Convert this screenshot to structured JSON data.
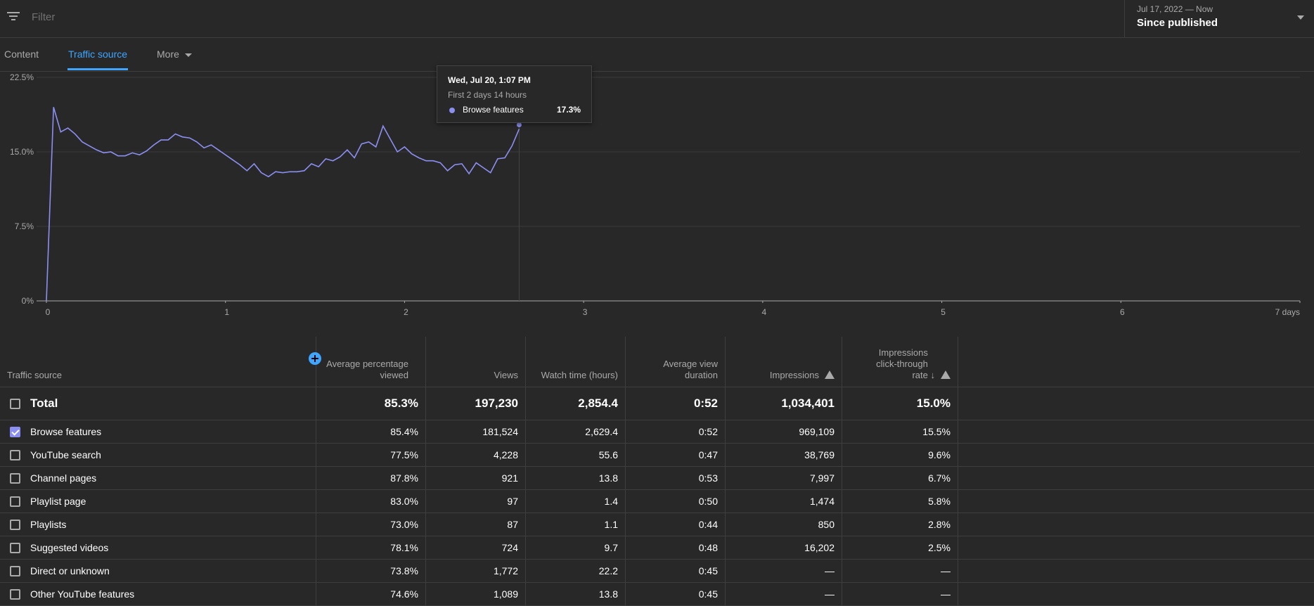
{
  "filter": {
    "placeholder": "Filter"
  },
  "date_range": {
    "range": "Jul 17, 2022 — Now",
    "label": "Since published"
  },
  "tabs": [
    {
      "label": "Content",
      "active": false
    },
    {
      "label": "Traffic source",
      "active": true
    },
    {
      "label": "More",
      "active": false
    }
  ],
  "chart_data": {
    "type": "line",
    "x": [
      0,
      0.04,
      0.08,
      0.12,
      0.16,
      0.2,
      0.24,
      0.28,
      0.32,
      0.36,
      0.4,
      0.44,
      0.48,
      0.52,
      0.56,
      0.6,
      0.64,
      0.68,
      0.72,
      0.76,
      0.8,
      0.84,
      0.88,
      0.92,
      0.96,
      1,
      1.04,
      1.08,
      1.12,
      1.16,
      1.2,
      1.24,
      1.28,
      1.32,
      1.36,
      1.4,
      1.44,
      1.48,
      1.52,
      1.56,
      1.6,
      1.64,
      1.68,
      1.72,
      1.76,
      1.8,
      1.84,
      1.88,
      1.92,
      1.96,
      2,
      2.04,
      2.08,
      2.12,
      2.16,
      2.2,
      2.24,
      2.28,
      2.32,
      2.36,
      2.4,
      2.44,
      2.48,
      2.52,
      2.56,
      2.6,
      2.64
    ],
    "series": [
      {
        "name": "Browse features",
        "color": "#8c8ff2",
        "values": [
          0,
          19.5,
          17.0,
          17.4,
          16.8,
          16.0,
          15.6,
          15.2,
          14.9,
          15.0,
          14.6,
          14.6,
          14.9,
          14.7,
          15.1,
          15.7,
          16.2,
          16.2,
          16.8,
          16.5,
          16.4,
          16.0,
          15.4,
          15.7,
          15.2,
          14.7,
          14.2,
          13.7,
          13.1,
          13.8,
          12.9,
          12.5,
          13.0,
          12.9,
          13.0,
          13.0,
          13.1,
          13.8,
          13.5,
          14.3,
          14.1,
          14.5,
          15.2,
          14.4,
          15.8,
          16.0,
          15.5,
          17.6,
          16.3,
          15.0,
          15.5,
          14.8,
          14.4,
          14.1,
          14.1,
          13.9,
          13.1,
          13.7,
          13.8,
          12.8,
          13.9,
          13.4,
          12.9,
          14.3,
          14.4,
          15.6,
          17.3
        ]
      }
    ],
    "xlim": [
      0,
      7
    ],
    "xticks": [
      0,
      1,
      2,
      3,
      4,
      5,
      6,
      {
        "value": 7,
        "label": "7 days"
      }
    ],
    "ylim": [
      0,
      22.5
    ],
    "yticks": [
      {
        "value": 0,
        "label": "0%"
      },
      {
        "value": 7.5,
        "label": "7.5%"
      },
      {
        "value": 15,
        "label": "15.0%"
      },
      {
        "value": 22.5,
        "label": "22.5%"
      }
    ],
    "grid": true,
    "tooltip": {
      "title": "Wed, Jul 20, 1:07 PM",
      "subtitle": "First 2 days 14 hours",
      "value_label": "17.3%"
    }
  },
  "table": {
    "headers": [
      "Traffic source",
      "Average percentage viewed",
      "Views",
      "Watch time (hours)",
      "Average view duration",
      "Impressions",
      "Impressions click-through rate"
    ],
    "total": {
      "label": "Total",
      "checked": false,
      "cells": [
        "85.3%",
        "197,230",
        "2,854.4",
        "0:52",
        "1,034,401",
        "15.0%"
      ]
    },
    "rows": [
      {
        "label": "Browse features",
        "checked": true,
        "cells": [
          "85.4%",
          "181,524",
          "2,629.4",
          "0:52",
          "969,109",
          "15.5%"
        ]
      },
      {
        "label": "YouTube search",
        "checked": false,
        "cells": [
          "77.5%",
          "4,228",
          "55.6",
          "0:47",
          "38,769",
          "9.6%"
        ]
      },
      {
        "label": "Channel pages",
        "checked": false,
        "cells": [
          "87.8%",
          "921",
          "13.8",
          "0:53",
          "7,997",
          "6.7%"
        ]
      },
      {
        "label": "Playlist page",
        "checked": false,
        "cells": [
          "83.0%",
          "97",
          "1.4",
          "0:50",
          "1,474",
          "5.8%"
        ]
      },
      {
        "label": "Playlists",
        "checked": false,
        "cells": [
          "73.0%",
          "87",
          "1.1",
          "0:44",
          "850",
          "2.8%"
        ]
      },
      {
        "label": "Suggested videos",
        "checked": false,
        "cells": [
          "78.1%",
          "724",
          "9.7",
          "0:48",
          "16,202",
          "2.5%"
        ]
      },
      {
        "label": "Direct or unknown",
        "checked": false,
        "cells": [
          "73.8%",
          "1,772",
          "22.2",
          "0:45",
          "—",
          "—"
        ]
      },
      {
        "label": "Other YouTube features",
        "checked": false,
        "cells": [
          "74.6%",
          "1,089",
          "13.8",
          "0:45",
          "—",
          "—"
        ]
      }
    ]
  }
}
